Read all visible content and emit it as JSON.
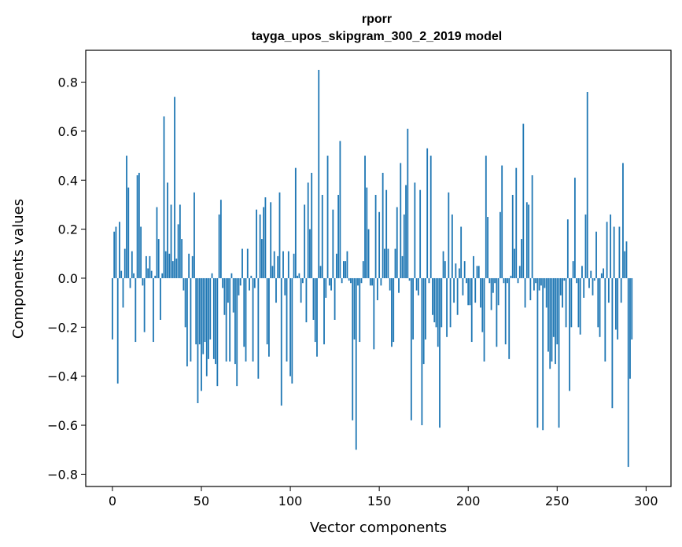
{
  "chart_data": {
    "type": "bar",
    "title": "rporr",
    "subtitle": "tayga_upos_skipgram_300_2_2019 model",
    "xlabel": "Vector components",
    "ylabel": "Components values",
    "xlim": [
      -15,
      314
    ],
    "ylim": [
      -0.85,
      0.93
    ],
    "xticks": [
      0,
      50,
      100,
      150,
      200,
      250,
      300
    ],
    "yticks": [
      -0.8,
      -0.6,
      -0.4,
      -0.2,
      0.0,
      0.2,
      0.4,
      0.6,
      0.8
    ],
    "xtick_labels": [
      "0",
      "50",
      "100",
      "150",
      "200",
      "250",
      "300"
    ],
    "ytick_labels": [
      "−0.8",
      "−0.6",
      "−0.4",
      "−0.2",
      "0.0",
      "0.2",
      "0.4",
      "0.6",
      "0.8"
    ],
    "bar_color": "#1f77b4",
    "grid": false,
    "values": [
      -0.25,
      0.19,
      0.21,
      -0.43,
      0.23,
      0.03,
      -0.12,
      0.12,
      0.5,
      0.37,
      -0.04,
      0.11,
      0.02,
      -0.26,
      0.42,
      0.43,
      0.21,
      -0.03,
      -0.22,
      0.09,
      0.04,
      0.09,
      0.03,
      -0.26,
      0.01,
      0.29,
      0.16,
      -0.17,
      0.02,
      0.66,
      0.11,
      0.39,
      0.1,
      0.3,
      0.07,
      0.74,
      0.08,
      0.22,
      0.3,
      0.16,
      -0.05,
      -0.2,
      -0.36,
      0.1,
      -0.34,
      0.09,
      0.35,
      -0.27,
      -0.51,
      -0.27,
      -0.46,
      -0.31,
      -0.26,
      -0.4,
      -0.33,
      -0.25,
      0.02,
      -0.33,
      -0.35,
      -0.44,
      0.26,
      0.32,
      -0.04,
      -0.15,
      -0.34,
      -0.1,
      -0.34,
      0.02,
      -0.14,
      -0.35,
      -0.44,
      -0.07,
      -0.03,
      0.12,
      -0.28,
      -0.34,
      0.12,
      -0.05,
      0.01,
      -0.34,
      -0.04,
      0.28,
      -0.41,
      0.26,
      0.16,
      0.29,
      0.33,
      -0.27,
      -0.32,
      0.31,
      0.05,
      0.11,
      -0.1,
      0.09,
      0.35,
      -0.52,
      0.11,
      -0.07,
      -0.34,
      0.11,
      -0.4,
      -0.43,
      0.1,
      0.45,
      0.01,
      0.02,
      -0.1,
      -0.02,
      0.3,
      -0.18,
      0.39,
      0.2,
      0.43,
      -0.17,
      -0.26,
      -0.32,
      0.85,
      0.05,
      0.34,
      -0.27,
      -0.08,
      0.5,
      -0.03,
      -0.05,
      0.28,
      -0.17,
      0.1,
      0.34,
      0.56,
      -0.02,
      0.07,
      0.07,
      0.11,
      -0.01,
      -0.02,
      -0.58,
      -0.25,
      -0.7,
      -0.03,
      -0.26,
      -0.02,
      0.07,
      0.5,
      0.37,
      0.2,
      -0.03,
      -0.03,
      -0.29,
      0.34,
      -0.09,
      0.27,
      -0.03,
      0.43,
      0.12,
      0.36,
      0.12,
      -0.05,
      -0.28,
      -0.26,
      0.12,
      0.29,
      -0.06,
      0.47,
      0.09,
      0.26,
      0.38,
      0.61,
      -0.01,
      -0.58,
      -0.25,
      0.39,
      -0.05,
      -0.07,
      0.36,
      -0.6,
      -0.35,
      -0.25,
      0.53,
      -0.02,
      0.5,
      -0.15,
      -0.18,
      -0.2,
      -0.28,
      -0.61,
      -0.2,
      0.11,
      0.07,
      -0.24,
      0.35,
      -0.2,
      0.26,
      -0.1,
      0.06,
      -0.15,
      0.04,
      0.21,
      -0.07,
      0.07,
      -0.02,
      -0.11,
      -0.11,
      -0.26,
      0.09,
      -0.1,
      0.05,
      0.05,
      -0.12,
      -0.22,
      -0.34,
      0.5,
      0.25,
      -0.02,
      -0.13,
      -0.06,
      -0.02,
      -0.28,
      -0.11,
      0.27,
      0.46,
      -0.02,
      -0.27,
      -0.02,
      -0.33,
      0.01,
      0.34,
      0.12,
      0.45,
      -0.02,
      0.05,
      0.16,
      0.63,
      -0.12,
      0.31,
      0.3,
      -0.09,
      0.42,
      -0.05,
      -0.02,
      -0.61,
      -0.05,
      -0.03,
      -0.62,
      -0.04,
      -0.12,
      -0.3,
      -0.37,
      -0.34,
      -0.24,
      -0.35,
      -0.27,
      -0.61,
      -0.07,
      -0.12,
      -0.01,
      -0.2,
      0.24,
      -0.46,
      -0.2,
      0.07,
      0.41,
      -0.02,
      -0.2,
      -0.23,
      0.05,
      -0.08,
      0.26,
      0.76,
      -0.04,
      0.03,
      -0.07,
      -0.01,
      0.19,
      -0.2,
      -0.24,
      0.02,
      0.04,
      -0.34,
      0.23,
      -0.1,
      0.26,
      -0.53,
      0.21,
      -0.21,
      -0.25,
      0.21,
      -0.1,
      0.47,
      0.11,
      0.15,
      -0.77,
      -0.41,
      -0.25
    ]
  }
}
